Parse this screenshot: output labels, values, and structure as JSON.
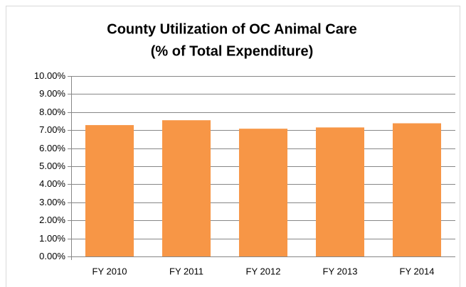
{
  "chart_data": {
    "type": "bar",
    "title": "County Utilization of OC Animal Care",
    "subtitle": "(% of Total Expenditure)",
    "categories": [
      "FY 2010",
      "FY 2011",
      "FY 2012",
      "FY 2013",
      "FY 2014"
    ],
    "values": [
      7.28,
      7.55,
      7.08,
      7.15,
      7.38
    ],
    "color": "#f79646",
    "ylim": [
      0,
      10
    ],
    "yticks": [
      {
        "value": 0,
        "label": "0.00%"
      },
      {
        "value": 1,
        "label": "1.00%"
      },
      {
        "value": 2,
        "label": "2.00%"
      },
      {
        "value": 3,
        "label": "3.00%"
      },
      {
        "value": 4,
        "label": "4.00%"
      },
      {
        "value": 5,
        "label": "5.00%"
      },
      {
        "value": 6,
        "label": "6.00%"
      },
      {
        "value": 7,
        "label": "7.00%"
      },
      {
        "value": 8,
        "label": "8.00%"
      },
      {
        "value": 9,
        "label": "9.00%"
      },
      {
        "value": 10,
        "label": "10.00%"
      }
    ],
    "grid": true
  }
}
